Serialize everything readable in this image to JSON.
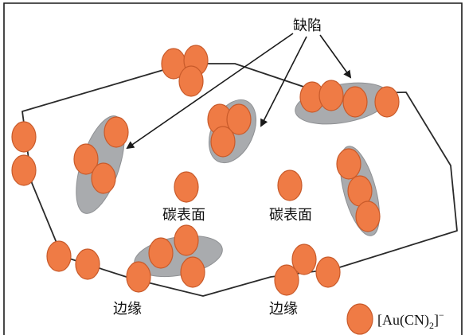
{
  "colors": {
    "ion_fill": "#ef7b45",
    "ion_stroke": "#c85a2a",
    "defect_fill": "#a9abae",
    "outline": "#2a2a2a"
  },
  "labels": {
    "defect": "缺陷",
    "carbon_surface_1": "碳表面",
    "carbon_surface_2": "碳表面",
    "edge_1": "边缘",
    "edge_2": "边缘"
  },
  "legend": {
    "icon": "orange-ion-circle",
    "text_main": "[Au(CN)",
    "text_sub": "2",
    "text_close": "]",
    "text_sup": "−"
  }
}
